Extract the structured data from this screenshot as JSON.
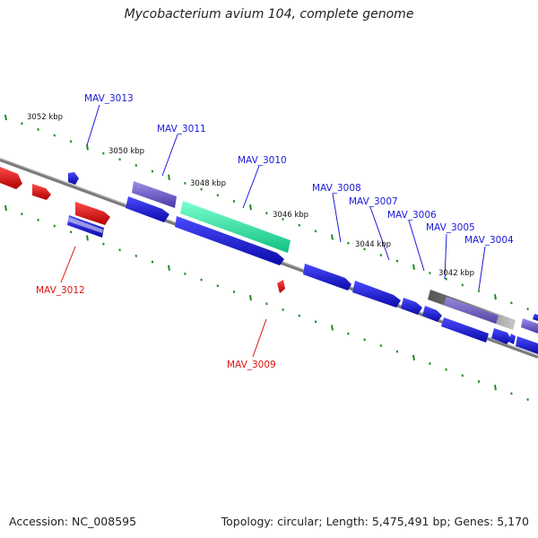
{
  "title": "Mycobacterium avium 104, complete genome",
  "footer": {
    "accession": "Accession: NC_008595",
    "summary": "Topology: circular; Length: 5,475,491 bp; Genes: 5,170"
  },
  "colors": {
    "forward_label": "#1a1ad8",
    "reverse_label": "#e01010",
    "backbone": "#7a7a7a",
    "tick": "#1f8a1f",
    "gene_blue": "#1414e0",
    "gene_red": "#ee1010",
    "gene_highlight": "#33f0a8",
    "gene_lavender": "#7a6ad8",
    "gene_gray": "#777777"
  },
  "kbp_labels": [
    "3052 kbp",
    "3050 kbp",
    "3048 kbp",
    "3046 kbp",
    "3044 kbp",
    "3042 kbp"
  ],
  "gene_labels": {
    "forward": [
      "MAV_3013",
      "MAV_3011",
      "MAV_3010",
      "MAV_3008",
      "MAV_3007",
      "MAV_3006",
      "MAV_3005",
      "MAV_3004"
    ],
    "reverse": [
      "MAV_3012",
      "MAV_3009"
    ]
  }
}
